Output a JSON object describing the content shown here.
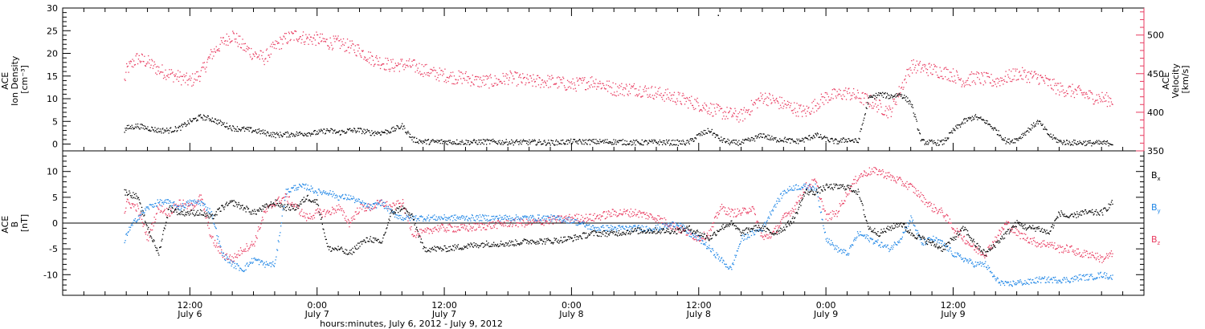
{
  "colors": {
    "black": "#000000",
    "pink": "#e83a5f",
    "blue": "#1f86e6",
    "background": "#ffffff"
  },
  "chart_data": [
    {
      "type": "scatter",
      "panel": "top",
      "left_axis_label": [
        "ACE",
        "Ion Density",
        "[cm⁻³]"
      ],
      "right_axis_label": [
        "ACE",
        "Velocity",
        "[km/s]"
      ],
      "ylim_left": [
        -1.5,
        30
      ],
      "yticks_left": [
        0,
        5,
        10,
        15,
        20,
        25,
        30
      ],
      "ylim_right": [
        350,
        535
      ],
      "yticks_right": [
        350,
        400,
        450,
        500
      ],
      "series": [
        {
          "name": "Ion Density",
          "axis": "left",
          "color": "#000000",
          "x": [
            5.8,
            6,
            7,
            8,
            9,
            10,
            11,
            12,
            13,
            14,
            15,
            16,
            18,
            20,
            22,
            24,
            25,
            26,
            27,
            28,
            29,
            30,
            31,
            32,
            33,
            34,
            36,
            38,
            40,
            42,
            44,
            46,
            48,
            50,
            52,
            54,
            56,
            58,
            59,
            60,
            61,
            62,
            63,
            64,
            65,
            66,
            67,
            68,
            69,
            70,
            71,
            72,
            73,
            74,
            75,
            76,
            77,
            78,
            79,
            80,
            81,
            82,
            83,
            84,
            85,
            86,
            87,
            88,
            89,
            90,
            91,
            92,
            93,
            94,
            95,
            96,
            97,
            98,
            99
          ],
          "y": [
            3,
            3.5,
            4,
            3.5,
            3,
            3,
            3.5,
            5,
            6,
            5.5,
            4.5,
            3.5,
            3,
            2,
            2.2,
            2.5,
            3,
            2.5,
            3,
            3,
            2.5,
            2.5,
            3,
            4,
            1,
            0.5,
            0.5,
            0.4,
            0.5,
            0.4,
            0.4,
            0.3,
            0.5,
            0.5,
            0.5,
            0.3,
            0.4,
            0.3,
            0.3,
            2,
            3,
            1,
            0.3,
            0.3,
            1,
            2,
            1,
            1,
            0.5,
            1,
            2,
            1,
            0.5,
            1,
            0.5,
            10,
            11,
            10.5,
            11,
            9,
            0.5,
            0.3,
            0.3,
            3,
            5,
            6,
            5,
            3,
            0.5,
            1,
            3,
            5,
            2,
            0.5,
            0.3,
            0.3,
            0.2,
            0.2,
            0.2
          ]
        },
        {
          "name": "Velocity",
          "axis": "right",
          "color": "#e83a5f",
          "x": [
            5.8,
            6,
            7,
            8,
            9,
            10,
            11,
            12,
            13,
            14,
            15,
            16,
            17,
            18,
            19,
            20,
            21,
            22,
            23,
            24,
            25,
            26,
            27,
            28,
            29,
            30,
            31,
            32,
            33,
            34,
            35,
            36,
            37,
            38,
            39,
            40,
            41,
            42,
            44,
            46,
            48,
            50,
            52,
            54,
            56,
            58,
            60,
            62,
            64,
            66,
            68,
            70,
            72,
            74,
            76,
            78,
            80,
            82,
            83,
            84,
            85,
            86,
            88,
            90,
            92,
            94,
            95,
            96,
            97,
            98,
            99
          ],
          "y": [
            440,
            455,
            470,
            465,
            455,
            450,
            445,
            440,
            450,
            475,
            490,
            500,
            485,
            475,
            470,
            485,
            495,
            500,
            495,
            495,
            490,
            490,
            485,
            480,
            470,
            465,
            460,
            462,
            460,
            455,
            450,
            448,
            445,
            445,
            440,
            440,
            440,
            445,
            440,
            440,
            435,
            440,
            430,
            430,
            425,
            418,
            410,
            400,
            395,
            420,
            410,
            400,
            420,
            425,
            415,
            400,
            460,
            455,
            452,
            448,
            440,
            445,
            440,
            450,
            445,
            430,
            428,
            425,
            420,
            418,
            415
          ]
        }
      ],
      "outliers": [
        {
          "x": 61.8,
          "y": 28.5
        }
      ]
    },
    {
      "type": "scatter",
      "panel": "bottom",
      "left_axis_label": [
        "ACE",
        "B",
        "[nT]"
      ],
      "ylim": [
        -14,
        14
      ],
      "yticks": [
        -10,
        -5,
        0,
        5,
        10
      ],
      "zero_line": true,
      "legend": [
        "Bx",
        "By",
        "Bz"
      ],
      "legend_placement": "right",
      "series": [
        {
          "name": "Bx",
          "color": "#000000",
          "x": [
            5.8,
            6,
            7,
            8,
            9,
            10,
            11,
            12,
            13,
            14,
            15,
            16,
            17,
            18,
            19,
            20,
            21,
            22,
            23,
            24,
            25,
            26,
            27,
            28,
            29,
            30,
            31,
            32,
            33,
            34,
            35,
            36,
            38,
            40,
            42,
            44,
            46,
            48,
            50,
            52,
            54,
            56,
            58,
            59,
            60,
            61,
            62,
            63,
            64,
            65,
            66,
            67,
            68,
            69,
            70,
            71,
            72,
            73,
            74,
            75,
            76,
            77,
            78,
            79,
            80,
            81,
            82,
            83,
            84,
            85,
            86,
            87,
            88,
            89,
            90,
            91,
            92,
            93,
            94,
            95,
            96,
            97,
            98,
            99
          ],
          "y": [
            6,
            6,
            5,
            -1,
            -6,
            3,
            2,
            2,
            2,
            1,
            3,
            4,
            3,
            2,
            3,
            4,
            3,
            3,
            5,
            4,
            -5,
            -5,
            -6,
            -4,
            -3,
            -4,
            2,
            3,
            1,
            -5,
            -5,
            -5,
            -4.5,
            -4,
            -4,
            -3.5,
            -3.5,
            -3,
            -2,
            -2,
            -1.5,
            -1.5,
            -1.5,
            -1,
            -2,
            -3,
            -1,
            0,
            -2,
            -1,
            -1,
            -2,
            -1,
            1,
            6,
            6,
            7,
            7,
            7,
            6,
            -1,
            -2,
            -1,
            0,
            -2,
            -3,
            -4,
            -5,
            -3,
            -1,
            -4,
            -6,
            -4,
            -2,
            0,
            -1,
            -1,
            -2,
            2,
            1,
            2,
            2,
            2,
            4
          ]
        },
        {
          "name": "By",
          "color": "#1f86e6",
          "x": [
            5.8,
            6,
            7,
            8,
            9,
            10,
            11,
            12,
            13,
            14,
            15,
            16,
            17,
            18,
            19,
            20,
            21,
            22,
            23,
            24,
            25,
            26,
            27,
            28,
            29,
            30,
            31,
            32,
            33,
            34,
            35,
            36,
            38,
            40,
            42,
            44,
            46,
            48,
            50,
            52,
            54,
            56,
            58,
            59,
            60,
            61,
            62,
            63,
            64,
            65,
            66,
            67,
            68,
            69,
            70,
            71,
            72,
            73,
            74,
            75,
            76,
            77,
            78,
            79,
            80,
            81,
            82,
            83,
            84,
            85,
            86,
            87,
            88,
            89,
            90,
            91,
            92,
            93,
            94,
            95,
            96,
            97,
            98,
            99
          ],
          "y": [
            -4,
            -2,
            1,
            3,
            4,
            4,
            3,
            4,
            4,
            2,
            -6,
            -8,
            -9,
            -7,
            -8,
            -8,
            6,
            7,
            7,
            6,
            6,
            5,
            5,
            4,
            3,
            4,
            2,
            1,
            1,
            1,
            1,
            1,
            1,
            1,
            1,
            1,
            1,
            0.5,
            -1,
            -1,
            -1,
            -1,
            0,
            -2,
            -3,
            -5,
            -7,
            -9,
            -3,
            -2,
            -1,
            3,
            6,
            7,
            7,
            7,
            -3,
            -5,
            -6,
            -2,
            -3,
            -4,
            -5,
            -3,
            1,
            -4,
            -3,
            -4,
            -6,
            -7,
            -8,
            -8,
            -11,
            -12,
            -11.5,
            -11.5,
            -11,
            -11,
            -11,
            -11,
            -10.5,
            -10.5,
            -10,
            -10.5
          ]
        },
        {
          "name": "Bz",
          "color": "#e83a5f",
          "x": [
            5.8,
            6,
            7,
            8,
            9,
            10,
            11,
            12,
            13,
            14,
            15,
            16,
            17,
            18,
            19,
            20,
            21,
            22,
            23,
            24,
            25,
            26,
            27,
            28,
            29,
            30,
            31,
            32,
            33,
            34,
            35,
            36,
            38,
            40,
            42,
            44,
            46,
            48,
            50,
            52,
            54,
            56,
            58,
            59,
            60,
            61,
            62,
            63,
            64,
            65,
            66,
            67,
            68,
            69,
            70,
            71,
            72,
            73,
            74,
            75,
            76,
            77,
            78,
            79,
            80,
            81,
            82,
            83,
            84,
            85,
            86,
            87,
            88,
            89,
            90,
            91,
            92,
            93,
            94,
            95,
            96,
            97,
            98,
            99
          ],
          "y": [
            2,
            4,
            3,
            -3,
            3,
            2,
            4,
            3,
            5,
            -3,
            -6,
            -7,
            -5,
            -4,
            2,
            4,
            5,
            3,
            1,
            2,
            2,
            3,
            0,
            3,
            3,
            4,
            3,
            4,
            -2,
            -2,
            -1,
            -1,
            -1,
            -0.5,
            0,
            0,
            0.5,
            1,
            1,
            2,
            2,
            1,
            -1,
            -2,
            -3,
            -2,
            3,
            2,
            2,
            3,
            -3,
            -2,
            1,
            3,
            7,
            8,
            1,
            2,
            6,
            9,
            10,
            10,
            9,
            8,
            7,
            5,
            3,
            2,
            -1,
            -3,
            -5,
            -6,
            -3,
            0,
            -2,
            -3,
            -4,
            -4,
            -5,
            -5,
            -6,
            -6,
            -7,
            -6
          ]
        }
      ]
    },
    {
      "type": "axis",
      "panel": "time",
      "x_title": "hours:minutes, July  6, 2012 - July  9, 2012",
      "xlim_hours": [
        0,
        102
      ],
      "ticks": [
        {
          "hour": 12,
          "time": "12:00",
          "date": "July 6"
        },
        {
          "hour": 24,
          "time": "0:00",
          "date": "July 7"
        },
        {
          "hour": 36,
          "time": "12:00",
          "date": "July 7"
        },
        {
          "hour": 48,
          "time": "0:00",
          "date": "July 8"
        },
        {
          "hour": 60,
          "time": "12:00",
          "date": "July 8"
        },
        {
          "hour": 72,
          "time": "0:00",
          "date": "July 9"
        },
        {
          "hour": 84,
          "time": "12:00",
          "date": "July 9"
        }
      ]
    }
  ]
}
